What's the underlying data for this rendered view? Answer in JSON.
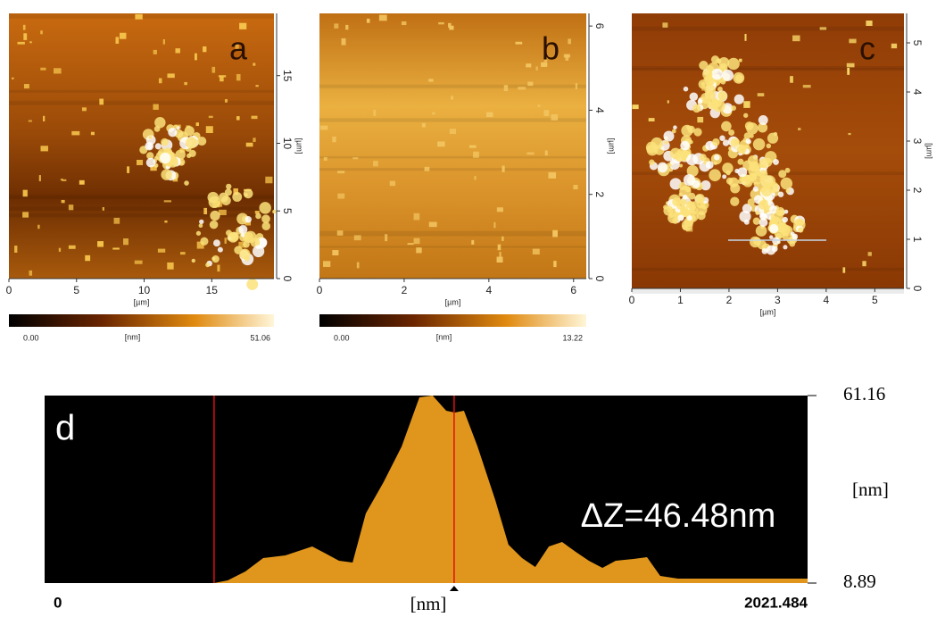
{
  "chart_data": [
    {
      "type": "image",
      "label": "a",
      "xlim": [
        0,
        19.6
      ],
      "xticks": [
        0,
        5,
        10,
        15
      ],
      "ylim": [
        0,
        19.6
      ],
      "yticks": [
        0,
        5,
        10,
        15
      ],
      "xlabel": "[µm]",
      "ylabel": "[µm]",
      "zlim": [
        0,
        51.06
      ],
      "zticks": [
        {
          "value": 0,
          "label": "0.00"
        },
        51.06
      ],
      "zlabel": "[nm]"
    },
    {
      "type": "image",
      "label": "b",
      "xlim": [
        0,
        6.3
      ],
      "xticks": [
        0,
        2,
        4,
        6
      ],
      "ylim": [
        0,
        6.3
      ],
      "yticks": [
        0,
        2,
        4,
        6
      ],
      "xlabel": "[µm]",
      "ylabel": "[µm]",
      "zlim": [
        0,
        13.22
      ],
      "zticks": [
        {
          "value": 0,
          "label": "0.00"
        },
        13.22
      ],
      "zlabel": "[nm]"
    },
    {
      "type": "image",
      "label": "c",
      "xlim": [
        0,
        5.6
      ],
      "xticks": [
        0,
        1,
        2,
        3,
        4,
        5
      ],
      "ylim": [
        0,
        5.6
      ],
      "yticks": [
        0,
        1,
        2,
        3,
        4,
        5
      ],
      "xlabel": "[µm]",
      "ylabel": "[µm]"
    },
    {
      "type": "area",
      "label": "d",
      "annotation": "ΔZ=46.48nm",
      "xlabel": "[nm]",
      "ylabel": "[nm]",
      "color": "#e0961c",
      "xlim": [
        0,
        2021.484
      ],
      "xticks": [
        0,
        2021.484
      ],
      "ylim": [
        8.89,
        61.16
      ],
      "yticks": [
        8.89,
        61.16
      ],
      "cursors": [
        449,
        1085
      ],
      "x": [
        0,
        449,
        485,
        532,
        579,
        638,
        709,
        745,
        780,
        816,
        851,
        898,
        946,
        993,
        1028,
        1064,
        1087,
        1111,
        1147,
        1194,
        1229,
        1265,
        1300,
        1336,
        1371,
        1407,
        1442,
        1478,
        1513,
        1560,
        1596,
        1631,
        1678,
        1773,
        1891,
        2021.484
      ],
      "values": [
        8.89,
        8.89,
        9.64,
        12.13,
        15.86,
        16.61,
        19.1,
        17.1,
        15.11,
        14.61,
        28.3,
        37.02,
        46.97,
        60.66,
        61.16,
        56.93,
        56.43,
        56.93,
        46.97,
        32.04,
        19.59,
        15.86,
        13.37,
        19.1,
        20.34,
        17.6,
        15.11,
        13.12,
        15.11,
        15.61,
        16.11,
        10.88,
        10.13,
        10.13,
        10.13,
        10.13
      ]
    }
  ]
}
